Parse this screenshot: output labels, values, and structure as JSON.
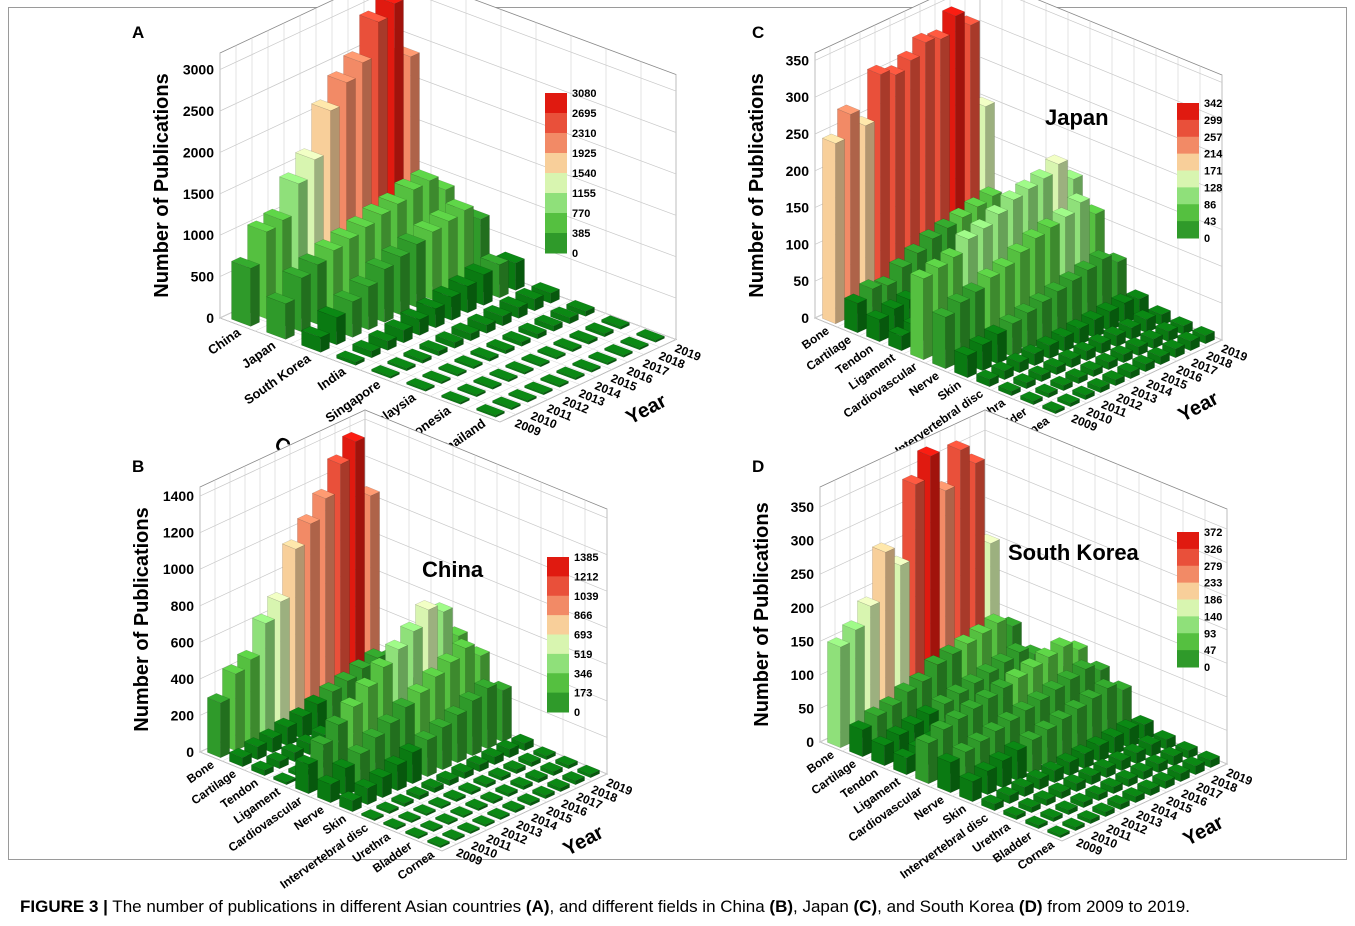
{
  "caption": {
    "label": "FIGURE 3 |",
    "p1": " The number of publications in different Asian countries ",
    "a": "(A)",
    "p2": ", and different fields in China ",
    "b": "(B)",
    "p3": ", Japan ",
    "c": "(C)",
    "p4": ", and South Korea ",
    "d": "(D)",
    "p5": " from 2009 to 2019."
  },
  "colors": {
    "scale": [
      "#0a7a12",
      "#2f9a2a",
      "#55c040",
      "#8fe07a",
      "#d8f5b0",
      "#f8cf9a",
      "#f28a66",
      "#e9503a",
      "#e01a10"
    ]
  },
  "chart_data": [
    {
      "panel": "A",
      "type": "bar3d",
      "title": "",
      "zlabel": "Number of Publications",
      "xlabel": "Country",
      "ylabel": "Year",
      "categories": [
        "China",
        "Japan",
        "South Korea",
        "India",
        "Singapore",
        "Malaysia",
        "Indonesia",
        "Thailand"
      ],
      "years": [
        "2009",
        "2010",
        "2011",
        "2012",
        "2013",
        "2014",
        "2015",
        "2016",
        "2017",
        "2018",
        "2019"
      ],
      "zticks": [
        "0",
        "500",
        "1000",
        "1500",
        "2000",
        "2500",
        "3000"
      ],
      "zmax": 3200,
      "legend": [
        "3080",
        "2695",
        "2310",
        "1925",
        "1540",
        "1155",
        "770",
        "385",
        "0"
      ],
      "legend_max": 3080,
      "values": [
        [
          700,
          1050,
          1100,
          1450,
          1650,
          2150,
          2400,
          2550,
          2950,
          3080,
          2350
        ],
        [
          430,
          650,
          720,
          800,
          850,
          900,
          960,
          1000,
          1080,
          1100,
          900
        ],
        [
          180,
          330,
          430,
          520,
          640,
          700,
          760,
          820,
          860,
          900,
          700
        ],
        [
          40,
          80,
          110,
          150,
          190,
          230,
          280,
          320,
          370,
          400,
          330
        ],
        [
          20,
          30,
          40,
          55,
          70,
          85,
          100,
          115,
          130,
          140,
          120
        ],
        [
          10,
          15,
          20,
          28,
          35,
          42,
          50,
          58,
          65,
          72,
          60
        ],
        [
          5,
          8,
          10,
          14,
          18,
          22,
          26,
          30,
          34,
          38,
          32
        ],
        [
          4,
          6,
          8,
          10,
          12,
          14,
          16,
          18,
          20,
          22,
          18
        ]
      ]
    },
    {
      "panel": "B",
      "type": "bar3d",
      "title": "China",
      "zlabel": "Number of Publications",
      "xlabel": "",
      "ylabel": "Year",
      "categories": [
        "Bone",
        "Cartilage",
        "Tendon",
        "Ligament",
        "Cardiovascular",
        "Nerve",
        "Skin",
        "Intervertebral disc",
        "Urethra",
        "Bladder",
        "Cornea"
      ],
      "years": [
        "2009",
        "2010",
        "2011",
        "2012",
        "2013",
        "2014",
        "2015",
        "2016",
        "2017",
        "2018",
        "2019"
      ],
      "zticks": [
        "0",
        "200",
        "400",
        "600",
        "800",
        "1000",
        "1200",
        "1400"
      ],
      "zmax": 1450,
      "legend": [
        "1385",
        "1212",
        "1039",
        "866",
        "693",
        "519",
        "346",
        "173",
        "0"
      ],
      "legend_max": 1385,
      "values": [
        [
          300,
          420,
          460,
          620,
          700,
          950,
          1050,
          1150,
          1300,
          1385,
          1050
        ],
        [
          50,
          70,
          80,
          100,
          120,
          150,
          180,
          200,
          230,
          250,
          210
        ],
        [
          30,
          40,
          50,
          60,
          70,
          80,
          95,
          110,
          120,
          135,
          110
        ],
        [
          15,
          20,
          25,
          30,
          35,
          42,
          50,
          55,
          62,
          70,
          60
        ],
        [
          160,
          230,
          300,
          360,
          430,
          500,
          560,
          620,
          700,
          650,
          480
        ],
        [
          100,
          150,
          190,
          240,
          280,
          330,
          370,
          420,
          460,
          500,
          420
        ],
        [
          60,
          90,
          110,
          140,
          170,
          200,
          230,
          260,
          300,
          330,
          280
        ],
        [
          10,
          14,
          18,
          22,
          26,
          30,
          34,
          38,
          42,
          46,
          40
        ],
        [
          6,
          8,
          10,
          12,
          14,
          16,
          18,
          20,
          22,
          24,
          20
        ],
        [
          5,
          7,
          9,
          11,
          13,
          15,
          17,
          19,
          21,
          23,
          19
        ],
        [
          4,
          6,
          8,
          10,
          12,
          14,
          16,
          18,
          20,
          22,
          18
        ]
      ]
    },
    {
      "panel": "C",
      "type": "bar3d",
      "title": "Japan",
      "zlabel": "Number of Publications",
      "xlabel": "",
      "ylabel": "Year",
      "categories": [
        "Bone",
        "Cartilage",
        "Tendon",
        "Ligament",
        "Cardiovascular",
        "Nerve",
        "Skin",
        "Intervertebral disc",
        "Urethra",
        "Bladder",
        "Cornea"
      ],
      "years": [
        "2009",
        "2010",
        "2011",
        "2012",
        "2013",
        "2014",
        "2015",
        "2016",
        "2017",
        "2018",
        "2019"
      ],
      "zticks": [
        "0",
        "50",
        "100",
        "150",
        "200",
        "250",
        "300",
        "350"
      ],
      "zmax": 360,
      "legend": [
        "342",
        "299",
        "257",
        "214",
        "171",
        "128",
        "86",
        "43",
        "0"
      ],
      "legend_max": 342,
      "values": [
        [
          245,
          275,
          250,
          310,
          300,
          310,
          325,
          320,
          342,
          320,
          200
        ],
        [
          40,
          50,
          45,
          60,
          70,
          80,
          85,
          90,
          95,
          100,
          80
        ],
        [
          30,
          35,
          38,
          42,
          48,
          52,
          55,
          60,
          65,
          70,
          58
        ],
        [
          20,
          24,
          26,
          30,
          34,
          38,
          42,
          46,
          50,
          54,
          46
        ],
        [
          110,
          115,
          120,
          135,
          140,
          150,
          160,
          165,
          170,
          180,
          150
        ],
        [
          70,
          80,
          85,
          95,
          100,
          110,
          120,
          125,
          130,
          140,
          115
        ],
        [
          30,
          35,
          40,
          45,
          50,
          55,
          60,
          65,
          70,
          75,
          62
        ],
        [
          10,
          12,
          14,
          16,
          18,
          20,
          22,
          24,
          26,
          28,
          24
        ],
        [
          6,
          8,
          9,
          10,
          12,
          13,
          14,
          15,
          16,
          18,
          15
        ],
        [
          5,
          6,
          7,
          8,
          9,
          10,
          11,
          12,
          13,
          14,
          12
        ],
        [
          4,
          5,
          6,
          7,
          8,
          9,
          10,
          11,
          12,
          13,
          11
        ]
      ]
    },
    {
      "panel": "D",
      "type": "bar3d",
      "title": "South Korea",
      "zlabel": "Number of Publications",
      "xlabel": "",
      "ylabel": "Year",
      "categories": [
        "Bone",
        "Cartilage",
        "Tendon",
        "Ligament",
        "Cardiovascular",
        "Nerve",
        "Skin",
        "Intervertebral disc",
        "Urethra",
        "Bladder",
        "Cornea"
      ],
      "years": [
        "2009",
        "2010",
        "2011",
        "2012",
        "2013",
        "2014",
        "2015",
        "2016",
        "2017",
        "2018",
        "2019"
      ],
      "zticks": [
        "0",
        "50",
        "100",
        "150",
        "200",
        "250",
        "300",
        "350"
      ],
      "zmax": 380,
      "legend": [
        "372",
        "326",
        "279",
        "233",
        "186",
        "140",
        "93",
        "47",
        "0"
      ],
      "legend_max": 372,
      "values": [
        [
          150,
          165,
          190,
          260,
          230,
          340,
          372,
          310,
          360,
          330,
          200
        ],
        [
          40,
          50,
          55,
          65,
          70,
          85,
          90,
          95,
          100,
          105,
          90
        ],
        [
          30,
          35,
          40,
          45,
          50,
          55,
          60,
          65,
          70,
          75,
          62
        ],
        [
          25,
          28,
          32,
          36,
          40,
          44,
          48,
          52,
          56,
          60,
          50
        ],
        [
          60,
          70,
          75,
          80,
          85,
          90,
          95,
          100,
          105,
          110,
          95
        ],
        [
          45,
          50,
          55,
          60,
          65,
          70,
          75,
          80,
          85,
          90,
          78
        ],
        [
          30,
          35,
          40,
          45,
          50,
          55,
          60,
          65,
          70,
          75,
          62
        ],
        [
          10,
          12,
          14,
          16,
          18,
          20,
          22,
          24,
          26,
          28,
          24
        ],
        [
          6,
          8,
          9,
          10,
          12,
          13,
          14,
          15,
          16,
          18,
          15
        ],
        [
          5,
          6,
          7,
          8,
          9,
          10,
          11,
          12,
          13,
          14,
          12
        ],
        [
          4,
          5,
          6,
          7,
          8,
          9,
          10,
          11,
          12,
          13,
          11
        ]
      ]
    }
  ],
  "panels": {
    "A": {
      "letter": "A"
    },
    "B": {
      "letter": "B"
    },
    "C": {
      "letter": "C"
    },
    "D": {
      "letter": "D"
    }
  }
}
